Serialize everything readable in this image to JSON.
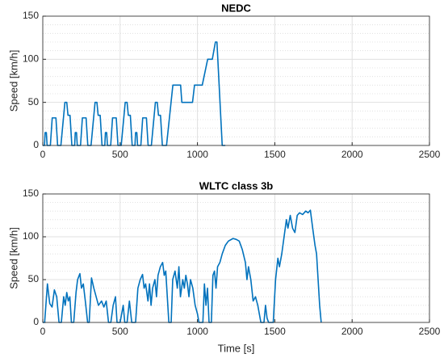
{
  "chart_data": [
    {
      "type": "line",
      "title": "NEDC",
      "ylabel": "Speed [km/h]",
      "color": "#0072bd",
      "grid": true,
      "minor_grid": true,
      "xlim": [
        0,
        2500
      ],
      "xticks": [
        0,
        500,
        1000,
        1500,
        2000,
        2500
      ],
      "ylim": [
        0,
        150
      ],
      "yticks": [
        0,
        50,
        100,
        150
      ],
      "yminorticks": [
        10,
        20,
        30,
        40,
        60,
        70,
        80,
        90,
        110,
        120,
        130,
        140
      ],
      "x": [
        0,
        11,
        15,
        23,
        28,
        49,
        61,
        85,
        96,
        117,
        143,
        155,
        163,
        176,
        188,
        195,
        206,
        210,
        218,
        223,
        244,
        256,
        280,
        291,
        312,
        338,
        350,
        358,
        371,
        383,
        390,
        401,
        405,
        413,
        418,
        439,
        451,
        475,
        486,
        507,
        533,
        545,
        553,
        566,
        578,
        585,
        596,
        600,
        608,
        613,
        634,
        646,
        670,
        681,
        702,
        728,
        740,
        748,
        761,
        773,
        800,
        841,
        891,
        899,
        968,
        981,
        1031,
        1066,
        1096,
        1116,
        1126,
        1160,
        1180
      ],
      "values": [
        0,
        0,
        15,
        15,
        0,
        0,
        32,
        32,
        0,
        0,
        50,
        50,
        35,
        35,
        0,
        0,
        0,
        15,
        15,
        0,
        0,
        32,
        32,
        0,
        0,
        50,
        50,
        35,
        35,
        0,
        0,
        0,
        15,
        15,
        0,
        0,
        32,
        32,
        0,
        0,
        50,
        50,
        35,
        35,
        0,
        0,
        0,
        15,
        15,
        0,
        0,
        32,
        32,
        0,
        0,
        50,
        50,
        35,
        35,
        0,
        0,
        70,
        70,
        50,
        50,
        70,
        70,
        100,
        100,
        120,
        120,
        0,
        0
      ]
    },
    {
      "type": "line",
      "title": "WLTC class 3b",
      "xlabel": "Time [s]",
      "ylabel": "Speed [km/h]",
      "color": "#0072bd",
      "grid": true,
      "minor_grid": true,
      "xlim": [
        0,
        2500
      ],
      "xticks": [
        0,
        500,
        1000,
        1500,
        2000,
        2500
      ],
      "ylim": [
        0,
        150
      ],
      "yticks": [
        0,
        50,
        100,
        150
      ],
      "yminorticks": [
        10,
        20,
        30,
        40,
        60,
        70,
        80,
        90,
        110,
        120,
        130,
        140
      ],
      "x": [
        0,
        12,
        30,
        45,
        60,
        75,
        90,
        105,
        120,
        135,
        145,
        155,
        165,
        175,
        185,
        200,
        215,
        225,
        240,
        250,
        262,
        275,
        290,
        300,
        315,
        330,
        345,
        360,
        380,
        395,
        410,
        425,
        440,
        455,
        470,
        480,
        500,
        520,
        530,
        545,
        560,
        575,
        589,
        600,
        615,
        630,
        645,
        655,
        665,
        680,
        690,
        700,
        710,
        725,
        735,
        745,
        760,
        775,
        785,
        795,
        805,
        815,
        830,
        840,
        855,
        870,
        880,
        890,
        905,
        915,
        925,
        935,
        945,
        955,
        970,
        985,
        1000,
        1010,
        1022,
        1035,
        1045,
        1055,
        1065,
        1075,
        1090,
        1100,
        1110,
        1120,
        1130,
        1145,
        1160,
        1180,
        1200,
        1230,
        1250,
        1270,
        1290,
        1310,
        1320,
        1330,
        1345,
        1360,
        1375,
        1390,
        1400,
        1410,
        1430,
        1440,
        1450,
        1460,
        1477,
        1490,
        1505,
        1520,
        1530,
        1545,
        1560,
        1575,
        1585,
        1600,
        1615,
        1630,
        1645,
        1660,
        1680,
        1700,
        1715,
        1730,
        1745,
        1760,
        1770,
        1780,
        1790,
        1800
      ],
      "values": [
        0,
        0,
        45,
        22,
        18,
        38,
        30,
        0,
        0,
        30,
        20,
        35,
        25,
        30,
        0,
        0,
        35,
        50,
        57,
        40,
        45,
        25,
        0,
        0,
        52,
        40,
        30,
        20,
        25,
        18,
        25,
        0,
        0,
        20,
        30,
        0,
        0,
        20,
        0,
        0,
        25,
        0,
        0,
        0,
        40,
        50,
        56,
        40,
        45,
        25,
        45,
        20,
        40,
        50,
        30,
        55,
        65,
        70,
        55,
        60,
        30,
        0,
        0,
        50,
        60,
        40,
        65,
        30,
        50,
        40,
        55,
        45,
        30,
        50,
        40,
        20,
        10,
        0,
        0,
        0,
        45,
        20,
        40,
        0,
        0,
        55,
        60,
        40,
        65,
        70,
        80,
        90,
        95,
        98,
        97,
        95,
        85,
        70,
        50,
        65,
        50,
        25,
        30,
        20,
        10,
        0,
        0,
        20,
        5,
        0,
        0,
        0,
        50,
        75,
        65,
        80,
        100,
        120,
        110,
        125,
        110,
        105,
        125,
        128,
        126,
        130,
        128,
        131,
        110,
        90,
        80,
        50,
        20,
        0
      ]
    }
  ]
}
